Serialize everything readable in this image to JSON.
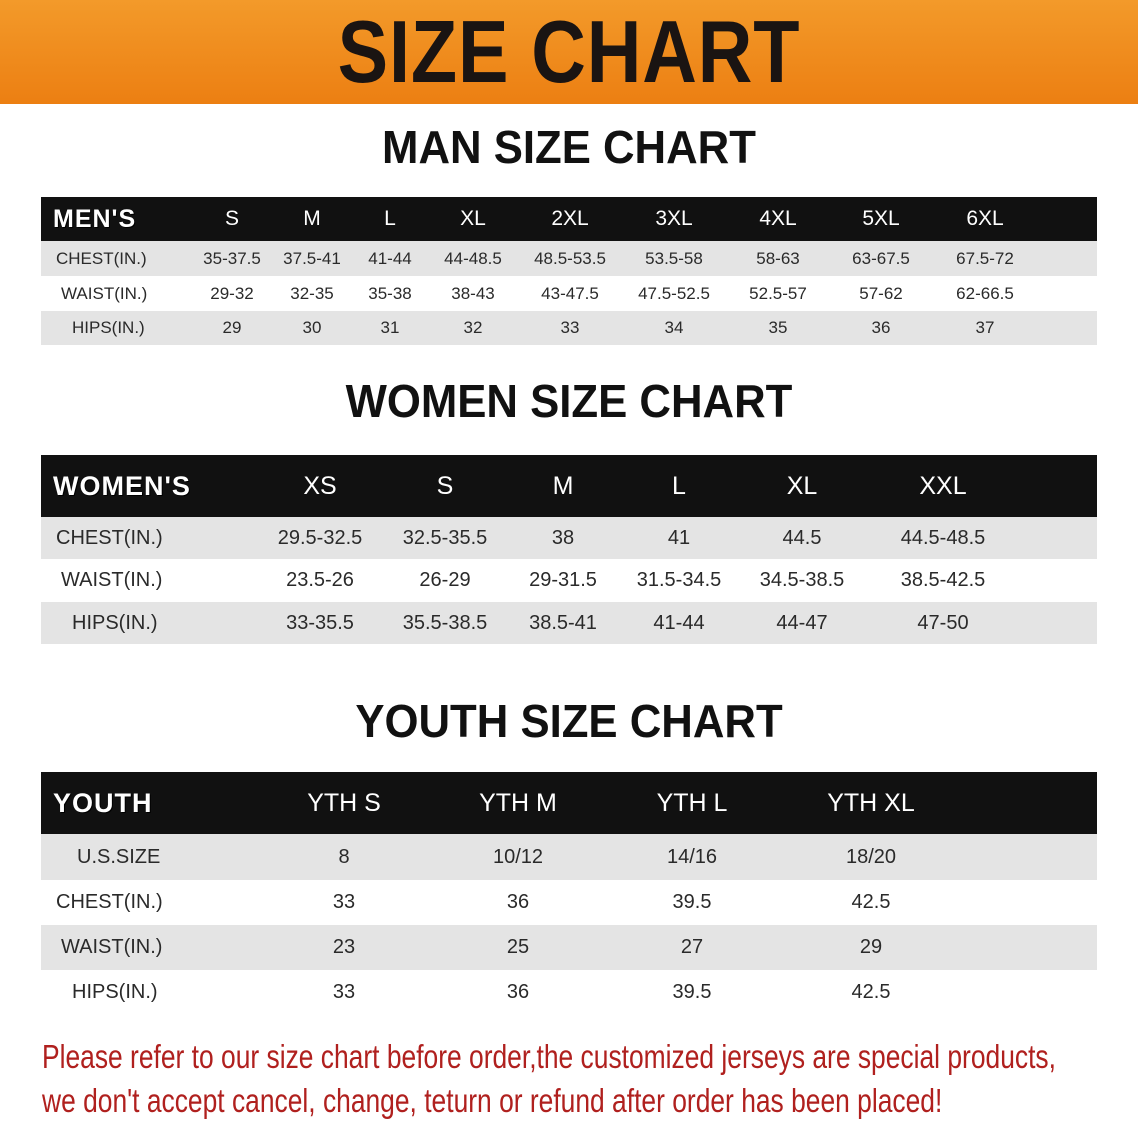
{
  "banner_title": "SIZE CHART",
  "colors": {
    "banner": "#ec7f12",
    "header_row": "#111111",
    "note": "#b0201e"
  },
  "men": {
    "title": "MAN SIZE CHART",
    "corner": "MEN'S",
    "columns": [
      "S",
      "M",
      "L",
      "XL",
      "2XL",
      "3XL",
      "4XL",
      "5XL",
      "6XL"
    ],
    "rows": [
      {
        "label": "CHEST(IN.)",
        "values": [
          "35-37.5",
          "37.5-41",
          "41-44",
          "44-48.5",
          "48.5-53.5",
          "53.5-58",
          "58-63",
          "63-67.5",
          "67.5-72"
        ]
      },
      {
        "label": "WAIST(IN.)",
        "values": [
          "29-32",
          "32-35",
          "35-38",
          "38-43",
          "43-47.5",
          "47.5-52.5",
          "52.5-57",
          "57-62",
          "62-66.5"
        ]
      },
      {
        "label": "HIPS(IN.)",
        "values": [
          "29",
          "30",
          "31",
          "32",
          "33",
          "34",
          "35",
          "36",
          "37"
        ]
      }
    ]
  },
  "women": {
    "title": "WOMEN SIZE CHART",
    "corner": "WOMEN'S",
    "columns": [
      "XS",
      "S",
      "M",
      "L",
      "XL",
      "XXL"
    ],
    "rows": [
      {
        "label": "CHEST(IN.)",
        "values": [
          "29.5-32.5",
          "32.5-35.5",
          "38",
          "41",
          "44.5",
          "44.5-48.5"
        ]
      },
      {
        "label": "WAIST(IN.)",
        "values": [
          "23.5-26",
          "26-29",
          "29-31.5",
          "31.5-34.5",
          "34.5-38.5",
          "38.5-42.5"
        ]
      },
      {
        "label": "HIPS(IN.)",
        "values": [
          "33-35.5",
          "35.5-38.5",
          "38.5-41",
          "41-44",
          "44-47",
          "47-50"
        ]
      }
    ]
  },
  "youth": {
    "title": "YOUTH SIZE CHART",
    "corner": "YOUTH",
    "columns": [
      "YTH S",
      "YTH M",
      "YTH L",
      "YTH XL"
    ],
    "rows": [
      {
        "label": "U.S.SIZE",
        "values": [
          "8",
          "10/12",
          "14/16",
          "18/20"
        ]
      },
      {
        "label": "CHEST(IN.)",
        "values": [
          "33",
          "36",
          "39.5",
          "42.5"
        ]
      },
      {
        "label": "WAIST(IN.)",
        "values": [
          "23",
          "25",
          "27",
          "29"
        ]
      },
      {
        "label": "HIPS(IN.)",
        "values": [
          "33",
          "36",
          "39.5",
          "42.5"
        ]
      }
    ]
  },
  "note": {
    "line1": "Please refer to our size chart before order,the customized jerseys are special products,",
    "line2": "we don't accept cancel, change, teturn or refund after order has been placed!"
  }
}
